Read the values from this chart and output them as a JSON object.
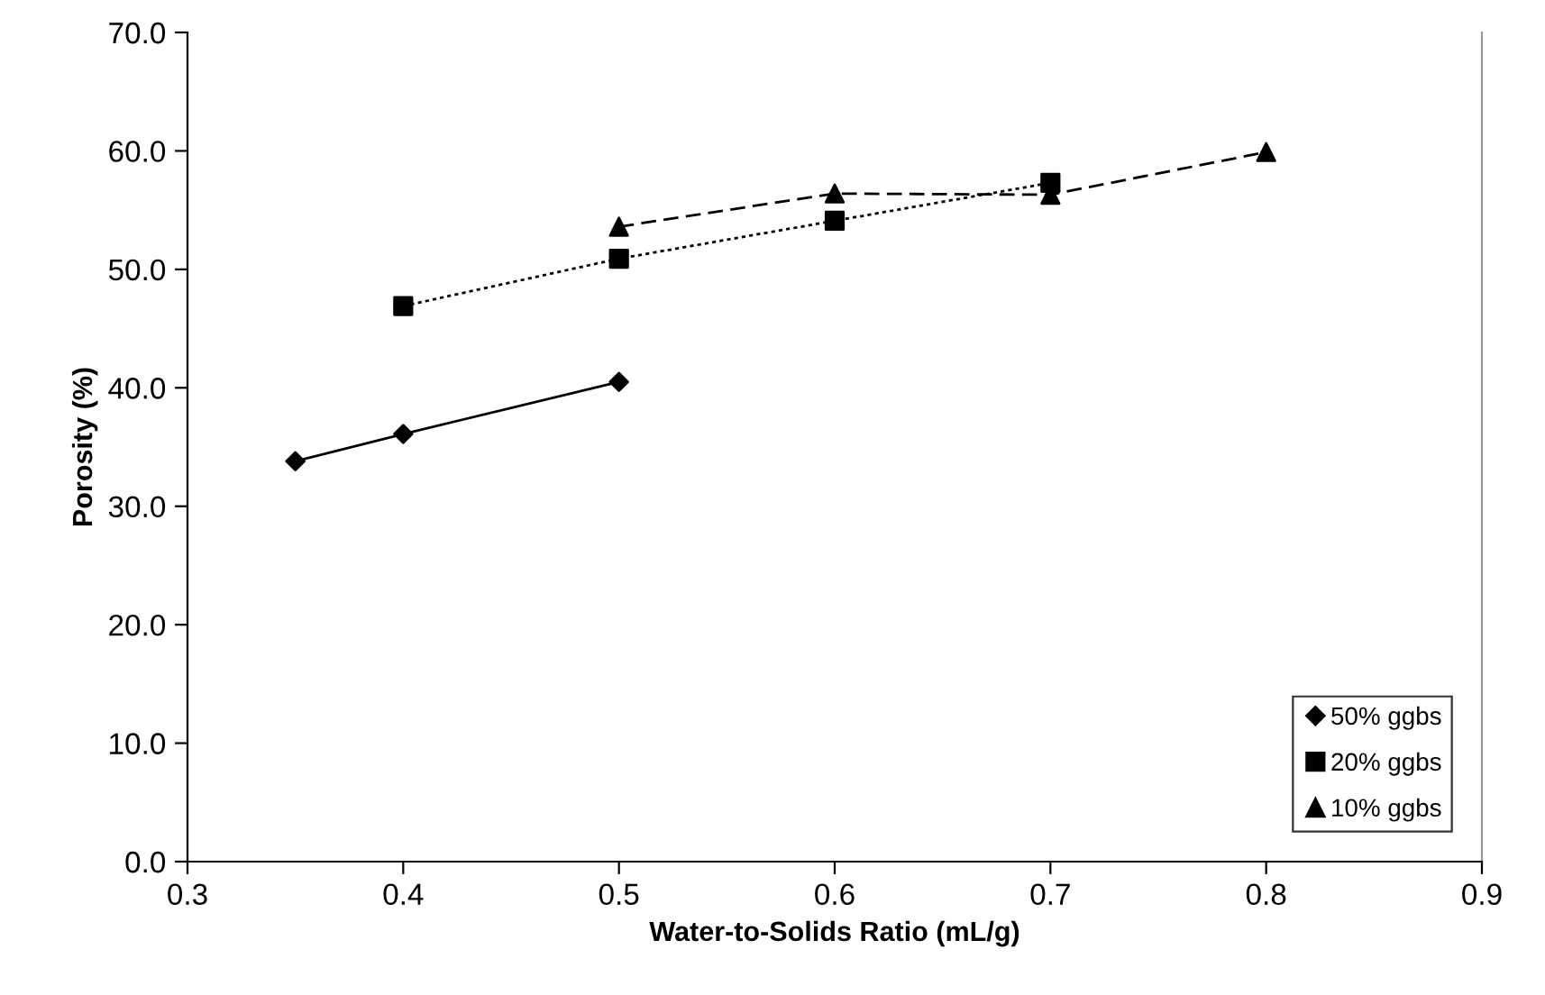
{
  "chart_data": {
    "type": "line",
    "xlabel": "Water-to-Solids Ratio (mL/g)",
    "ylabel": "Porosity (%)",
    "xlim": [
      0.3,
      0.9
    ],
    "xticks": [
      {
        "value": 0.3,
        "label": "0.3"
      },
      {
        "value": 0.4,
        "label": "0.4"
      },
      {
        "value": 0.5,
        "label": "0.5"
      },
      {
        "value": 0.6,
        "label": "0.6"
      },
      {
        "value": 0.7,
        "label": "0.7"
      },
      {
        "value": 0.8,
        "label": "0.8"
      },
      {
        "value": 0.9,
        "label": "0.9"
      }
    ],
    "ylim": [
      0,
      70
    ],
    "yticks": [
      {
        "value": 0,
        "label": "0.0"
      },
      {
        "value": 10,
        "label": "10.0"
      },
      {
        "value": 20,
        "label": "20.0"
      },
      {
        "value": 30,
        "label": "30.0"
      },
      {
        "value": 40,
        "label": "40.0"
      },
      {
        "value": 50,
        "label": "50.0"
      },
      {
        "value": 60,
        "label": "60.0"
      },
      {
        "value": 70,
        "label": "70.0"
      }
    ],
    "grid": false,
    "legend": "bottom right",
    "series": [
      {
        "name": "50% ggbs",
        "color": "#000000",
        "marker": "diamond",
        "line_style": "solid",
        "x": [
          0.35,
          0.4,
          0.5
        ],
        "values": [
          33.8,
          36.1,
          40.5
        ]
      },
      {
        "name": "20% ggbs",
        "color": "#000000",
        "marker": "square",
        "line_style": "dotted",
        "x": [
          0.4,
          0.5,
          0.6,
          0.7
        ],
        "values": [
          46.9,
          50.9,
          54.1,
          57.3
        ]
      },
      {
        "name": "10% ggbs",
        "color": "#000000",
        "marker": "triangle",
        "line_style": "dashed",
        "x": [
          0.5,
          0.6,
          0.7,
          0.8
        ],
        "values": [
          53.6,
          56.4,
          56.3,
          59.9
        ]
      }
    ]
  }
}
